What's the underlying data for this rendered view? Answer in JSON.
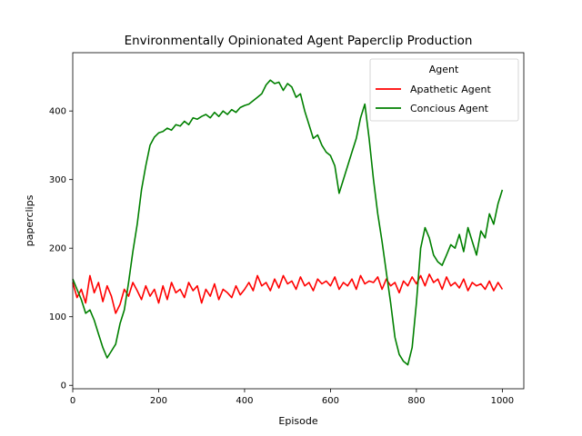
{
  "chart_data": {
    "type": "line",
    "title": "Environmentally Opinionated Agent Paperclip Production",
    "xlabel": "Episode",
    "ylabel": "paperclips",
    "xlim": [
      0,
      1050
    ],
    "ylim": [
      -5,
      485
    ],
    "xticks": [
      0,
      200,
      400,
      600,
      800,
      1000
    ],
    "yticks": [
      0,
      100,
      200,
      300,
      400
    ],
    "grid": false,
    "legend": {
      "title": "Agent",
      "placement": "top-right"
    },
    "series": [
      {
        "name": "Apathetic Agent",
        "color": "#ff0000",
        "x": [
          0,
          10,
          20,
          30,
          40,
          50,
          60,
          70,
          80,
          90,
          100,
          110,
          120,
          130,
          140,
          150,
          160,
          170,
          180,
          190,
          200,
          210,
          220,
          230,
          240,
          250,
          260,
          270,
          280,
          290,
          300,
          310,
          320,
          330,
          340,
          350,
          360,
          370,
          380,
          390,
          400,
          410,
          420,
          430,
          440,
          450,
          460,
          470,
          480,
          490,
          500,
          510,
          520,
          530,
          540,
          550,
          560,
          570,
          580,
          590,
          600,
          610,
          620,
          630,
          640,
          650,
          660,
          670,
          680,
          690,
          700,
          710,
          720,
          730,
          740,
          750,
          760,
          770,
          780,
          790,
          800,
          810,
          820,
          830,
          840,
          850,
          860,
          870,
          880,
          890,
          900,
          910,
          920,
          930,
          940,
          950,
          960,
          970,
          980,
          990,
          1000
        ],
        "values": [
          150,
          128,
          140,
          120,
          160,
          135,
          150,
          122,
          145,
          130,
          105,
          118,
          140,
          130,
          150,
          138,
          125,
          145,
          130,
          140,
          120,
          145,
          125,
          150,
          135,
          140,
          128,
          150,
          138,
          145,
          120,
          140,
          130,
          148,
          125,
          140,
          135,
          128,
          145,
          132,
          140,
          150,
          138,
          160,
          145,
          150,
          138,
          155,
          142,
          160,
          148,
          152,
          140,
          158,
          145,
          150,
          138,
          155,
          148,
          152,
          145,
          158,
          140,
          150,
          145,
          155,
          140,
          160,
          148,
          152,
          150,
          158,
          140,
          155,
          145,
          150,
          135,
          152,
          145,
          158,
          148,
          160,
          145,
          162,
          150,
          155,
          140,
          158,
          145,
          150,
          142,
          155,
          138,
          150,
          145,
          148,
          140,
          152,
          138,
          150,
          140
        ]
      },
      {
        "name": "Concious Agent",
        "color": "#008000",
        "x": [
          0,
          10,
          20,
          30,
          40,
          50,
          60,
          70,
          80,
          90,
          100,
          110,
          120,
          130,
          140,
          150,
          160,
          170,
          180,
          190,
          200,
          210,
          220,
          230,
          240,
          250,
          260,
          270,
          280,
          290,
          300,
          310,
          320,
          330,
          340,
          350,
          360,
          370,
          380,
          390,
          400,
          410,
          420,
          430,
          440,
          450,
          460,
          470,
          480,
          490,
          500,
          510,
          520,
          530,
          540,
          550,
          560,
          570,
          580,
          590,
          600,
          610,
          620,
          630,
          640,
          650,
          660,
          670,
          680,
          690,
          700,
          710,
          720,
          730,
          740,
          750,
          760,
          770,
          780,
          790,
          800,
          810,
          820,
          830,
          840,
          850,
          860,
          870,
          880,
          890,
          900,
          910,
          920,
          930,
          940,
          950,
          960,
          970,
          980,
          990,
          1000
        ],
        "values": [
          155,
          140,
          125,
          105,
          110,
          95,
          75,
          55,
          40,
          50,
          60,
          90,
          110,
          150,
          195,
          235,
          285,
          320,
          350,
          362,
          368,
          370,
          375,
          372,
          380,
          378,
          385,
          380,
          390,
          388,
          392,
          395,
          390,
          398,
          392,
          400,
          395,
          402,
          398,
          405,
          408,
          410,
          415,
          420,
          425,
          438,
          445,
          440,
          442,
          430,
          440,
          435,
          420,
          425,
          400,
          380,
          360,
          365,
          350,
          340,
          335,
          320,
          280,
          300,
          320,
          340,
          360,
          390,
          410,
          360,
          300,
          250,
          210,
          165,
          120,
          70,
          45,
          35,
          30,
          55,
          120,
          200,
          230,
          215,
          190,
          180,
          175,
          190,
          205,
          200,
          220,
          195,
          230,
          210,
          190,
          225,
          215,
          250,
          235,
          265,
          285
        ]
      }
    ]
  }
}
